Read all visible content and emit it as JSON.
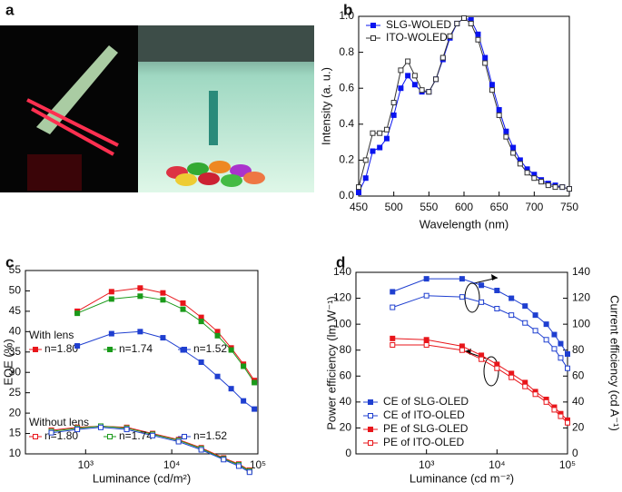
{
  "photo_panel": {
    "panel_label": "a"
  },
  "chart_data": [
    {
      "type": "line",
      "panel_label": "b",
      "xlabel": "Wavelength (nm)",
      "ylabel": "Intensity (a. u.)",
      "x": [
        450,
        460,
        470,
        480,
        490,
        500,
        510,
        520,
        530,
        540,
        550,
        560,
        570,
        580,
        590,
        600,
        610,
        620,
        630,
        640,
        650,
        660,
        670,
        680,
        690,
        700,
        710,
        720,
        730,
        740,
        750
      ],
      "series": [
        {
          "name": "SLG-WOLED",
          "color": "#0a14f0",
          "marker": "square-filled",
          "values": [
            0.02,
            0.1,
            0.25,
            0.27,
            0.32,
            0.45,
            0.6,
            0.67,
            0.62,
            0.58,
            0.58,
            0.65,
            0.76,
            0.88,
            0.96,
            0.99,
            0.98,
            0.9,
            0.77,
            0.62,
            0.48,
            0.36,
            0.27,
            0.2,
            0.15,
            0.12,
            0.09,
            0.07,
            0.06,
            0.05,
            0.04
          ]
        },
        {
          "name": "ITO-WOLED",
          "color": "#333333",
          "marker": "square-open",
          "values": [
            0.05,
            0.2,
            0.35,
            0.35,
            0.37,
            0.52,
            0.7,
            0.75,
            0.67,
            0.59,
            0.58,
            0.65,
            0.77,
            0.89,
            0.96,
            0.99,
            0.96,
            0.87,
            0.74,
            0.59,
            0.45,
            0.33,
            0.24,
            0.18,
            0.13,
            0.1,
            0.08,
            0.06,
            0.05,
            0.05,
            0.04
          ]
        }
      ],
      "xlim": [
        450,
        750
      ],
      "xticks": [
        450,
        500,
        550,
        600,
        650,
        700,
        750
      ],
      "ylim": [
        0,
        1
      ],
      "yticks": [
        {
          "value": 0,
          "label": "0.0"
        },
        {
          "value": 0.2,
          "label": "0.2"
        },
        {
          "value": 0.4,
          "label": "0.4"
        },
        {
          "value": 0.6,
          "label": "0.6"
        },
        {
          "value": 0.8,
          "label": "0.8"
        },
        {
          "value": 1,
          "label": "1.0"
        }
      ],
      "legend": "upper left"
    },
    {
      "type": "line",
      "panel_label": "c",
      "xlabel": "Luminance (cd/m²)",
      "ylabel": "EQE (%)",
      "xscale": "log",
      "series_groups": [
        {
          "title": "With lens",
          "series": [
            {
              "name": "n=1.80",
              "color": "#e8161b",
              "marker": "square-filled",
              "x": [
                800,
                2000,
                4300,
                7900,
                13500,
                22000,
                34000,
                49000,
                68000,
                91000
              ],
              "values": [
                45,
                49.8,
                50.7,
                49.5,
                47,
                43.5,
                40,
                36,
                32,
                28
              ]
            },
            {
              "name": "n=1.74",
              "color": "#1a9a1a",
              "marker": "square-filled",
              "x": [
                800,
                2000,
                4300,
                7900,
                13500,
                22000,
                34000,
                49000,
                68000,
                91000
              ],
              "values": [
                44.5,
                48,
                48.7,
                47.8,
                45.5,
                42.5,
                39,
                35.5,
                31.5,
                27.5
              ]
            },
            {
              "name": "n=1.52",
              "color": "#1f3fd0",
              "marker": "square-filled",
              "x": [
                800,
                2000,
                4300,
                7900,
                13500,
                22000,
                34000,
                49000,
                68000,
                91000
              ],
              "values": [
                36.5,
                39.5,
                40,
                38.5,
                35.5,
                32.5,
                29,
                26,
                23,
                21
              ]
            }
          ]
        },
        {
          "title": "Without lens",
          "series": [
            {
              "name": "n=1.80",
              "color": "#e8161b",
              "marker": "square-open",
              "x": [
                400,
                800,
                1500,
                3000,
                6000,
                12000,
                22000,
                40000,
                60000,
                80000
              ],
              "values": [
                15.8,
                16.5,
                16.8,
                16.5,
                15,
                13.5,
                11.5,
                9,
                7.5,
                6
              ]
            },
            {
              "name": "n=1.74",
              "color": "#1a9a1a",
              "marker": "square-open",
              "x": [
                400,
                800,
                1500,
                3000,
                6000,
                12000,
                22000,
                40000,
                60000,
                80000
              ],
              "values": [
                15.5,
                16.3,
                16.8,
                16.3,
                14.8,
                13.3,
                11.3,
                8.8,
                7.3,
                5.8
              ]
            },
            {
              "name": "n=1.52",
              "color": "#1f3fd0",
              "marker": "square-open",
              "x": [
                400,
                800,
                1500,
                3000,
                6000,
                12000,
                22000,
                40000,
                60000,
                80000
              ],
              "values": [
                15.2,
                16,
                16.5,
                16,
                14.5,
                13,
                11,
                8.6,
                7,
                5.5
              ]
            }
          ]
        }
      ],
      "xlim": [
        200,
        100000
      ],
      "xticks": [
        {
          "value": 1000,
          "label": "10³"
        },
        {
          "value": 10000,
          "label": "10⁴"
        },
        {
          "value": 100000,
          "label": "10⁵"
        }
      ],
      "ylim": [
        10,
        55
      ],
      "yticks": [
        10,
        15,
        20,
        25,
        30,
        35,
        40,
        45,
        50,
        55
      ]
    },
    {
      "type": "line",
      "panel_label": "d",
      "xlabel": "Luminance (cd m⁻²)",
      "ylabel": "Power efficiency (lm W⁻¹)",
      "y2label": "Current efficiency (cd A⁻¹)",
      "xscale": "log",
      "series": [
        {
          "name": "CE of SLG-OLED",
          "color": "#1f3fd0",
          "marker": "square-filled",
          "axis": "y2",
          "x": [
            330,
            1000,
            3200,
            6000,
            10000,
            16000,
            25000,
            35000,
            50000,
            65000,
            80000,
            100000
          ],
          "values": [
            125,
            135,
            135,
            130,
            126,
            120,
            114,
            107,
            100,
            92,
            85,
            77
          ]
        },
        {
          "name": "CE of ITO-OLED",
          "color": "#1f3fd0",
          "marker": "square-open",
          "axis": "y2",
          "x": [
            330,
            1000,
            3200,
            6000,
            10000,
            16000,
            25000,
            35000,
            50000,
            65000,
            80000,
            100000
          ],
          "values": [
            113,
            122,
            121,
            117,
            112,
            107,
            101,
            95,
            88,
            81,
            74,
            66
          ]
        },
        {
          "name": "PE of SLG-OLED",
          "color": "#e8161b",
          "marker": "square-filled",
          "x": [
            330,
            1000,
            3200,
            6000,
            10000,
            16000,
            25000,
            35000,
            50000,
            65000,
            80000,
            100000
          ],
          "values": [
            89,
            88,
            83,
            76,
            69,
            62,
            55,
            48,
            42,
            36,
            31,
            26
          ]
        },
        {
          "name": "PE of ITO-OLED",
          "color": "#e8161b",
          "marker": "square-open",
          "x": [
            330,
            1000,
            3200,
            6000,
            10000,
            16000,
            25000,
            35000,
            50000,
            65000,
            80000,
            100000
          ],
          "values": [
            84,
            84,
            80,
            73,
            66,
            59,
            52,
            46,
            40,
            34,
            29,
            24
          ]
        }
      ],
      "xlim": [
        100,
        100000
      ],
      "xticks": [
        {
          "value": 1000,
          "label": "10³"
        },
        {
          "value": 10000,
          "label": "10⁴"
        },
        {
          "value": 100000,
          "label": "10⁵"
        }
      ],
      "ylim": [
        0,
        140
      ],
      "yticks": [
        0,
        20,
        40,
        60,
        80,
        100,
        120,
        140
      ],
      "y2lim": [
        0,
        140
      ],
      "y2ticks": [
        0,
        20,
        40,
        60,
        80,
        100,
        120,
        140
      ],
      "legend": "lower left"
    }
  ]
}
